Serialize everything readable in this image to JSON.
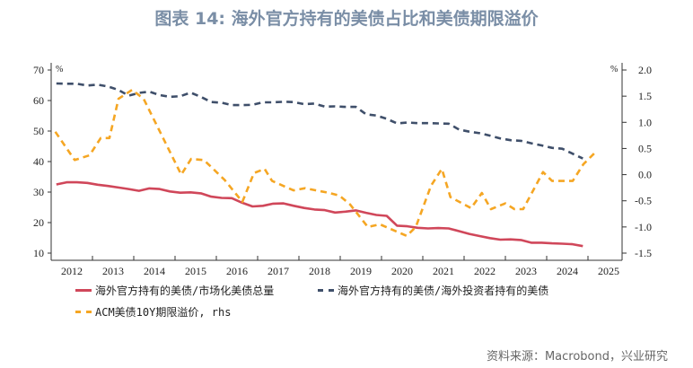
{
  "title": "图表 14: 海外官方持有的美债占比和美债期限溢价",
  "source": "资料来源：Macrobond，兴业研究",
  "chart_data": {
    "type": "line",
    "title": "图表 14: 海外官方持有的美债占比和美债期限溢价",
    "left_axis": {
      "unit": "%",
      "ylim": [
        10,
        70
      ],
      "ticks": [
        "70",
        "60",
        "50",
        "40",
        "30",
        "20",
        "10"
      ]
    },
    "right_axis": {
      "unit": "%",
      "ylim": [
        -1.5,
        2.0
      ],
      "ticks": [
        "2.0",
        "1.5",
        "1.0",
        "0.5",
        "0.0",
        "-0.5",
        "-1.0",
        "-1.5"
      ]
    },
    "x_tick_labels": [
      "2012",
      "2013",
      "2014",
      "2015",
      "2016",
      "2017",
      "2018",
      "2019",
      "2020",
      "2021",
      "2022",
      "2023",
      "2024",
      "2025"
    ],
    "grid": false,
    "legend_position": "bottom",
    "colors": {
      "red": "#d0475a",
      "blue": "#3f4f6a",
      "orange": "#f5a623"
    },
    "series": [
      {
        "name": "海外官方持有的美债/市场化美债总量",
        "axis": "left",
        "style": "solid",
        "color": "#d0475a",
        "x": [
          2012.125,
          2012.375,
          2012.625,
          2012.875,
          2013.125,
          2013.375,
          2013.625,
          2013.875,
          2014.125,
          2014.375,
          2014.625,
          2014.875,
          2015.125,
          2015.375,
          2015.625,
          2015.875,
          2016.125,
          2016.375,
          2016.625,
          2016.875,
          2017.125,
          2017.375,
          2017.625,
          2017.875,
          2018.125,
          2018.375,
          2018.625,
          2018.875,
          2019.125,
          2019.375,
          2019.625,
          2019.875,
          2020.125,
          2020.375,
          2020.625,
          2020.875,
          2021.125,
          2021.375,
          2021.625,
          2021.875,
          2022.125,
          2022.375,
          2022.625,
          2022.875,
          2023.125,
          2023.375,
          2023.625,
          2023.875,
          2024.125,
          2024.375,
          2024.625,
          2024.875
        ],
        "values": [
          32.5,
          33.2,
          33.2,
          33.0,
          32.4,
          32.0,
          31.5,
          31.0,
          30.4,
          31.2,
          31.0,
          30.2,
          29.8,
          29.9,
          29.6,
          28.5,
          28.1,
          28.0,
          26.5,
          25.3,
          25.5,
          26.2,
          26.3,
          25.5,
          24.8,
          24.3,
          24.1,
          23.3,
          23.6,
          24.0,
          23.2,
          22.5,
          22.2,
          19.0,
          18.8,
          18.3,
          18.1,
          18.2,
          18.1,
          17.2,
          16.3,
          15.6,
          14.9,
          14.4,
          14.5,
          14.3,
          13.4,
          13.4,
          13.2,
          13.1,
          12.9,
          12.3
        ]
      },
      {
        "name": "海外官方持有的美债/海外投资者持有的美债",
        "axis": "left",
        "style": "dashed",
        "color": "#3f4f6a",
        "x": [
          2012.125,
          2012.375,
          2012.625,
          2012.875,
          2013.125,
          2013.375,
          2013.625,
          2013.875,
          2014.125,
          2014.375,
          2014.625,
          2014.875,
          2015.125,
          2015.375,
          2015.625,
          2015.875,
          2016.125,
          2016.375,
          2016.625,
          2016.875,
          2017.125,
          2017.375,
          2017.625,
          2017.875,
          2018.125,
          2018.375,
          2018.625,
          2018.875,
          2019.125,
          2019.375,
          2019.625,
          2019.875,
          2020.125,
          2020.375,
          2020.625,
          2020.875,
          2021.125,
          2021.375,
          2021.625,
          2021.875,
          2022.125,
          2022.375,
          2022.625,
          2022.875,
          2023.125,
          2023.375,
          2023.625,
          2023.875,
          2024.125,
          2024.375,
          2024.625,
          2024.875
        ],
        "values": [
          65.6,
          65.5,
          65.5,
          64.9,
          65.2,
          64.6,
          63.5,
          61.6,
          62.5,
          62.9,
          61.8,
          61.2,
          61.4,
          62.6,
          61.2,
          59.5,
          59.3,
          58.5,
          58.5,
          58.6,
          59.4,
          59.4,
          59.6,
          59.5,
          58.8,
          59.0,
          58.0,
          58.1,
          57.9,
          57.9,
          55.5,
          55.1,
          54.0,
          52.5,
          52.8,
          52.6,
          52.6,
          52.5,
          52.4,
          50.5,
          49.8,
          49.3,
          48.5,
          47.6,
          47.0,
          46.8,
          46.0,
          45.3,
          44.5,
          44.2,
          42.6,
          41.0
        ]
      },
      {
        "name": "ACM美债10Y期限溢价, rhs",
        "axis": "right",
        "style": "dashed",
        "color": "#f5a623",
        "x": [
          2012.1,
          2012.57,
          2012.93,
          2013.2,
          2013.41,
          2013.63,
          2013.96,
          2014.24,
          2015.15,
          2015.39,
          2015.7,
          2016.2,
          2016.63,
          2016.91,
          2017.17,
          2017.35,
          2017.87,
          2018.15,
          2018.74,
          2018.98,
          2019.24,
          2019.67,
          2019.96,
          2020.61,
          2020.83,
          2021.2,
          2021.46,
          2021.67,
          2022.17,
          2022.43,
          2022.65,
          2023.0,
          2023.22,
          2023.43,
          2023.91,
          2024.13,
          2024.63,
          2024.89,
          2025.17
        ],
        "values": [
          0.82,
          0.28,
          0.37,
          0.7,
          0.7,
          1.45,
          1.62,
          1.45,
          0.0,
          0.3,
          0.28,
          -0.1,
          -0.52,
          0.03,
          0.11,
          -0.12,
          -0.3,
          -0.26,
          -0.35,
          -0.4,
          -0.57,
          -1.0,
          -0.95,
          -1.17,
          -1.0,
          -0.21,
          0.11,
          -0.43,
          -0.64,
          -0.35,
          -0.66,
          -0.55,
          -0.66,
          -0.66,
          0.05,
          -0.12,
          -0.12,
          0.2,
          0.42
        ]
      }
    ]
  }
}
